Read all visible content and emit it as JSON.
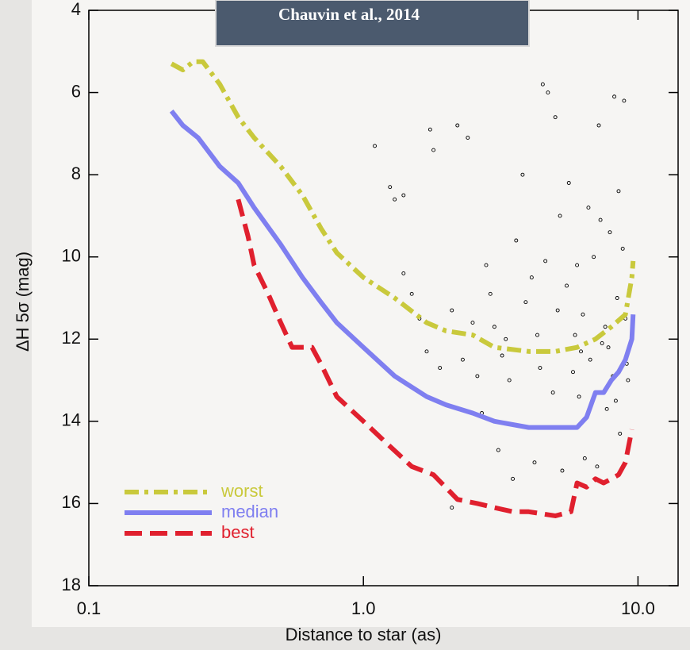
{
  "chart_data": {
    "type": "line",
    "annotation": "Chauvin et al., 2014",
    "x_label": "Distance to star (as)",
    "y_label": "ΔH 5σ (mag)",
    "x_scale": "log",
    "xlim": [
      0.1,
      14
    ],
    "xticks": [
      0.1,
      {
        "value": 1,
        "label": "1.0"
      },
      {
        "value": 10,
        "label": "10.0"
      }
    ],
    "ylim": [
      18,
      4
    ],
    "yticks": [
      4,
      6,
      8,
      10,
      12,
      14,
      16,
      18
    ],
    "legend": "lower left",
    "series": [
      {
        "name": "worst",
        "color": "#c9c93c",
        "dash": "dashdot",
        "x": [
          0.2,
          0.22,
          0.24,
          0.26,
          0.3,
          0.35,
          0.4,
          0.5,
          0.6,
          0.7,
          0.8,
          1.0,
          1.3,
          1.7,
          2.0,
          2.5,
          3,
          4,
          5,
          6,
          7,
          8,
          9,
          9.5,
          9.6
        ],
        "values": [
          5.3,
          5.45,
          5.25,
          5.25,
          5.8,
          6.6,
          7.1,
          7.8,
          8.5,
          9.3,
          9.9,
          10.5,
          11.0,
          11.6,
          11.8,
          11.9,
          12.2,
          12.3,
          12.3,
          12.2,
          12.0,
          11.7,
          11.4,
          10.5,
          10.1
        ]
      },
      {
        "name": "median",
        "color": "#7f7ff0",
        "dash": "solid",
        "x": [
          0.2,
          0.22,
          0.25,
          0.3,
          0.35,
          0.4,
          0.5,
          0.6,
          0.7,
          0.8,
          1.0,
          1.3,
          1.7,
          2,
          2.5,
          3,
          4,
          5,
          6,
          6.5,
          7,
          7.5,
          8,
          8.5,
          9,
          9.5,
          9.6
        ],
        "values": [
          6.45,
          6.8,
          7.1,
          7.8,
          8.2,
          8.8,
          9.7,
          10.5,
          11.1,
          11.6,
          12.2,
          12.9,
          13.4,
          13.6,
          13.8,
          14.0,
          14.15,
          14.15,
          14.15,
          13.9,
          13.3,
          13.3,
          13.0,
          12.8,
          12.5,
          12.0,
          11.4
        ]
      },
      {
        "name": "best",
        "color": "#e0202e",
        "dash": "dashed",
        "x": [
          0.35,
          0.38,
          0.4,
          0.45,
          0.5,
          0.55,
          0.65,
          0.7,
          0.8,
          1.0,
          1.2,
          1.5,
          1.8,
          2.2,
          2.6,
          3,
          3.5,
          4,
          5,
          5.7,
          6,
          6.5,
          7,
          7.5,
          8,
          8.5,
          9,
          9.5
        ],
        "values": [
          8.6,
          9.5,
          10.2,
          10.9,
          11.6,
          12.2,
          12.2,
          12.6,
          13.4,
          14.0,
          14.5,
          15.1,
          15.3,
          15.9,
          16.0,
          16.1,
          16.2,
          16.2,
          16.3,
          16.2,
          15.5,
          15.6,
          15.4,
          15.5,
          15.4,
          15.3,
          15.0,
          14.2
        ]
      }
    ],
    "scatter": {
      "color": "#000000",
      "x": [
        1.1,
        1.25,
        1.3,
        1.4,
        1.75,
        1.8,
        2.2,
        2.4,
        1.4,
        1.5,
        1.6,
        1.7,
        1.9,
        2.1,
        2.3,
        2.5,
        2.6,
        2.8,
        3.0,
        3.2,
        3.4,
        3.6,
        3.8,
        4.1,
        4.3,
        4.5,
        4.7,
        5.0,
        5.2,
        5.5,
        5.8,
        6.1,
        6.3,
        6.6,
        6.9,
        7.2,
        7.4,
        7.7,
        7.9,
        8.2,
        8.4,
        8.6,
        8.9,
        9.1,
        9.3,
        3.1,
        3.5,
        4.2,
        5.3,
        2.1,
        6.4,
        7.1,
        2.7,
        4.9,
        5.9,
        6.7,
        7.6,
        8.1,
        8.8,
        4.4,
        3.9,
        5.6,
        6.0,
        7.3,
        8.5,
        9.0,
        2.9,
        3.3,
        4.6,
        5.1,
        6.2,
        7.8,
        8.3,
        9.2
      ],
      "values": [
        7.3,
        8.3,
        8.6,
        8.5,
        6.9,
        7.4,
        6.8,
        7.1,
        10.4,
        10.9,
        11.5,
        12.3,
        12.7,
        11.3,
        12.5,
        11.6,
        12.9,
        10.2,
        11.7,
        12.4,
        13.0,
        9.6,
        8.0,
        10.5,
        11.9,
        5.8,
        6.0,
        6.6,
        9.0,
        10.7,
        12.8,
        13.4,
        11.4,
        8.8,
        10.0,
        6.8,
        12.1,
        13.7,
        9.4,
        6.1,
        11.0,
        14.3,
        6.2,
        12.6,
        10.8,
        14.7,
        15.4,
        15.0,
        15.2,
        16.1,
        14.9,
        15.1,
        13.8,
        13.3,
        11.9,
        12.5,
        11.7,
        12.9,
        9.8,
        12.7,
        11.1,
        8.2,
        10.2,
        9.1,
        8.4,
        11.5,
        10.9,
        12.0,
        10.1,
        11.3,
        12.3,
        12.2,
        13.5,
        13.0
      ]
    }
  }
}
